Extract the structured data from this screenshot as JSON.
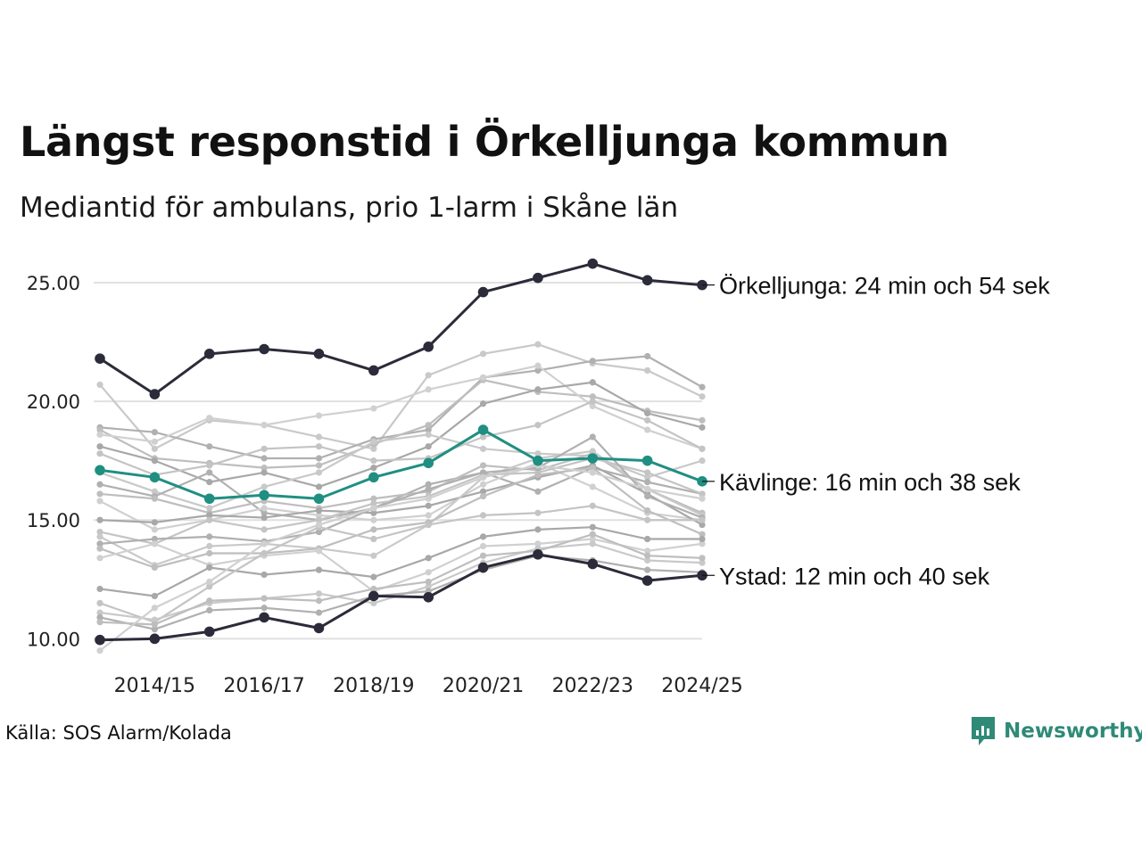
{
  "header": {
    "title": "Längst responstid i Örkelljunga kommun",
    "subtitle": "Mediantid för ambulans, prio 1-larm i Skåne län"
  },
  "footer": {
    "source": "Källa: SOS Alarm/Kolada",
    "brand": "Newsworthy"
  },
  "colors": {
    "highlight_dark": "#2b2b3a",
    "highlight_teal": "#1f8f82",
    "background_series": "#bdbdbd",
    "grid": "#e0e0e0",
    "brand": "#2f8a78"
  },
  "chart_data": {
    "type": "line",
    "title": "Längst responstid i Örkelljunga kommun",
    "subtitle": "Mediantid för ambulans, prio 1-larm i Skåne län",
    "xlabel": "",
    "ylabel": "",
    "x": [
      "2013/14",
      "2014/15",
      "2015/16",
      "2016/17",
      "2017/18",
      "2018/19",
      "2019/20",
      "2020/21",
      "2021/22",
      "2022/23",
      "2023/24",
      "2024/25"
    ],
    "x_tick_labels": [
      "2014/15",
      "2016/17",
      "2018/19",
      "2020/21",
      "2022/23",
      "2024/25"
    ],
    "y_ticks": [
      "10.00",
      "15.00",
      "20.00",
      "25.00"
    ],
    "ylim": [
      9.3,
      26.2
    ],
    "grid": true,
    "highlighted_series": [
      {
        "name": "Örkelljunga",
        "label": "Örkelljunga: 24 min och 54 sek",
        "color": "#2b2b3a",
        "values": [
          21.8,
          20.3,
          22.0,
          22.2,
          22.0,
          21.3,
          22.3,
          24.6,
          25.2,
          25.8,
          25.1,
          24.9
        ]
      },
      {
        "name": "Kävlinge",
        "label": "Kävlinge: 16 min och 38 sek",
        "color": "#1f8f82",
        "values": [
          17.1,
          16.8,
          15.9,
          16.05,
          15.9,
          16.8,
          17.4,
          18.8,
          17.5,
          17.6,
          17.5,
          16.63
        ]
      },
      {
        "name": "Ystad",
        "label": "Ystad: 12 min och 40 sek",
        "color": "#2b2b3a",
        "values": [
          9.95,
          10.0,
          10.3,
          10.9,
          10.45,
          11.8,
          11.75,
          13.0,
          13.55,
          13.15,
          12.45,
          12.67
        ]
      }
    ],
    "background_series": [
      {
        "values": [
          20.7,
          18.0,
          19.2,
          19.0,
          18.5,
          18.0,
          21.1,
          22.0,
          22.4,
          21.6,
          21.3,
          20.2
        ]
      },
      {
        "values": [
          18.9,
          18.7,
          18.1,
          17.6,
          17.6,
          18.4,
          18.8,
          21.0,
          21.3,
          21.7,
          21.9,
          20.6
        ]
      },
      {
        "values": [
          18.8,
          17.6,
          17.4,
          17.2,
          17.3,
          18.2,
          19.0,
          20.9,
          20.4,
          20.2,
          19.6,
          19.2
        ]
      },
      {
        "values": [
          18.6,
          18.3,
          19.3,
          19.0,
          19.4,
          19.7,
          20.5,
          21.0,
          21.5,
          19.8,
          18.8,
          18.0
        ]
      },
      {
        "values": [
          18.1,
          17.5,
          16.6,
          17.0,
          16.4,
          17.2,
          18.1,
          19.9,
          20.5,
          20.8,
          19.5,
          18.9
        ]
      },
      {
        "values": [
          17.8,
          16.9,
          17.3,
          18.0,
          18.1,
          17.5,
          17.6,
          18.5,
          19.0,
          20.0,
          19.2,
          18.0
        ]
      },
      {
        "values": [
          17.0,
          16.2,
          15.5,
          16.4,
          17.0,
          18.3,
          18.6,
          18.0,
          17.8,
          17.7,
          16.8,
          17.5
        ]
      },
      {
        "values": [
          16.5,
          16.0,
          17.0,
          15.3,
          15.0,
          15.5,
          16.5,
          17.0,
          16.2,
          17.2,
          16.6,
          16.1
        ]
      },
      {
        "values": [
          16.1,
          15.9,
          15.3,
          15.8,
          15.5,
          15.9,
          16.2,
          17.3,
          17.1,
          17.8,
          16.3,
          15.3
        ]
      },
      {
        "values": [
          15.8,
          14.6,
          15.0,
          15.5,
          15.2,
          15.0,
          15.2,
          16.5,
          17.4,
          16.4,
          15.3,
          15.0
        ]
      },
      {
        "values": [
          15.0,
          14.9,
          15.2,
          15.1,
          15.4,
          15.3,
          15.6,
          16.2,
          16.8,
          17.3,
          16.1,
          14.8
        ]
      },
      {
        "values": [
          14.5,
          14.0,
          15.0,
          14.6,
          15.0,
          15.7,
          16.0,
          16.9,
          17.0,
          17.6,
          17.0,
          16.1
        ]
      },
      {
        "values": [
          14.3,
          13.1,
          13.9,
          14.0,
          13.8,
          13.5,
          14.8,
          16.8,
          17.6,
          17.9,
          16.3,
          15.2
        ]
      },
      {
        "values": [
          14.0,
          14.2,
          14.3,
          14.1,
          14.5,
          15.5,
          16.3,
          17.0,
          17.2,
          18.5,
          16.0,
          15.1
        ]
      },
      {
        "values": [
          13.8,
          13.0,
          13.6,
          13.6,
          13.8,
          14.6,
          14.9,
          16.0,
          16.9,
          17.2,
          15.4,
          14.4
        ]
      },
      {
        "values": [
          13.4,
          14.0,
          13.1,
          13.5,
          13.7,
          12.0,
          12.8,
          13.9,
          14.0,
          14.2,
          13.7,
          14.0
        ]
      },
      {
        "values": [
          12.1,
          11.8,
          13.0,
          12.7,
          12.9,
          12.6,
          13.4,
          14.3,
          14.6,
          14.7,
          14.2,
          14.2
        ]
      },
      {
        "values": [
          11.5,
          10.7,
          12.2,
          13.6,
          14.7,
          14.2,
          14.8,
          15.2,
          15.3,
          15.6,
          15.0,
          15.0
        ]
      },
      {
        "values": [
          11.1,
          10.8,
          11.5,
          11.7,
          11.9,
          11.5,
          12.2,
          13.2,
          13.8,
          14.0,
          13.3,
          13.2
        ]
      },
      {
        "values": [
          10.9,
          10.4,
          11.2,
          11.3,
          11.1,
          11.8,
          12.0,
          12.9,
          13.5,
          13.3,
          12.9,
          12.8
        ]
      },
      {
        "values": [
          10.7,
          10.6,
          11.6,
          11.7,
          11.6,
          12.1,
          12.4,
          13.5,
          13.7,
          14.4,
          13.5,
          13.4
        ]
      },
      {
        "values": [
          9.5,
          11.3,
          12.4,
          14.0,
          14.8,
          15.5,
          15.9,
          16.8,
          17.3,
          17.0,
          16.3,
          15.9
        ]
      }
    ]
  }
}
